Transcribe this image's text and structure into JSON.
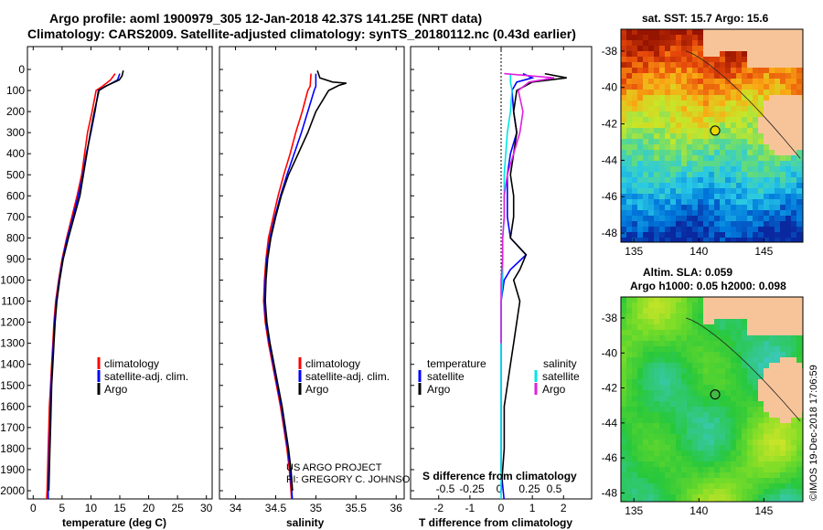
{
  "header": {
    "line1": "Argo profile: aoml 1900979_305 12-Jan-2018 42.37S 141.25E (NRT data)",
    "line2": "Climatology: CARS2009. Satellite-adjusted climatology: synTS_20180112.nc (0.43d earlier)"
  },
  "credit": {
    "line1": "US ARGO PROJECT",
    "line2": "PI: GREGORY C. JOHNSON"
  },
  "stamp": "©IMOS 19-Dec-2018 17:06:59",
  "colors": {
    "climatology": "#ff0000",
    "satellite": "#0000ff",
    "argo": "#000000",
    "sat_salinity": "#00e5e5",
    "argo_salinity": "#e020e0",
    "coast": "#222222",
    "land": "#f7c49a"
  },
  "chart_data": [
    {
      "type": "line",
      "title": "",
      "xlabel": "temperature (deg C)",
      "ylabel": "",
      "xlim": [
        -1,
        31
      ],
      "ylim": [
        2070,
        0
      ],
      "xticks": [
        "0",
        "5",
        "10",
        "15",
        "20",
        "25",
        "30"
      ],
      "yticks": [
        "0",
        "100",
        "200",
        "300",
        "400",
        "500",
        "600",
        "700",
        "800",
        "900",
        "1000",
        "1100",
        "1200",
        "1300",
        "1400",
        "1500",
        "1600",
        "1700",
        "1800",
        "1900",
        "2000"
      ],
      "legend": {
        "placement": "lower-middle",
        "entries": [
          "climatology",
          "satellite-adj. clim.",
          "Argo"
        ]
      },
      "series": [
        {
          "name": "climatology",
          "color": "#ff0000",
          "points": [
            [
              14.2,
              20
            ],
            [
              13.4,
              50
            ],
            [
              12.0,
              80
            ],
            [
              10.9,
              100
            ],
            [
              10.2,
              200
            ],
            [
              9.4,
              300
            ],
            [
              8.9,
              400
            ],
            [
              8.4,
              500
            ],
            [
              7.6,
              600
            ],
            [
              6.7,
              700
            ],
            [
              5.8,
              800
            ],
            [
              5.0,
              900
            ],
            [
              4.4,
              1000
            ],
            [
              3.9,
              1100
            ],
            [
              3.6,
              1200
            ],
            [
              3.4,
              1300
            ],
            [
              3.2,
              1400
            ],
            [
              3.0,
              1500
            ],
            [
              2.8,
              1600
            ],
            [
              2.7,
              1700
            ],
            [
              2.6,
              1800
            ],
            [
              2.5,
              1900
            ],
            [
              2.4,
              2000
            ],
            [
              2.3,
              2050
            ]
          ]
        },
        {
          "name": "satellite-adj. clim.",
          "color": "#0000ff",
          "points": [
            [
              15.0,
              20
            ],
            [
              14.6,
              50
            ],
            [
              12.6,
              80
            ],
            [
              11.3,
              100
            ],
            [
              10.7,
              200
            ],
            [
              10.0,
              300
            ],
            [
              9.2,
              400
            ],
            [
              8.6,
              500
            ],
            [
              7.8,
              600
            ],
            [
              6.9,
              700
            ],
            [
              5.9,
              800
            ],
            [
              5.1,
              900
            ],
            [
              4.5,
              1000
            ],
            [
              4.0,
              1100
            ],
            [
              3.7,
              1200
            ],
            [
              3.5,
              1300
            ],
            [
              3.3,
              1400
            ],
            [
              3.1,
              1500
            ],
            [
              3.0,
              1600
            ],
            [
              2.9,
              1700
            ],
            [
              2.8,
              1800
            ],
            [
              2.7,
              1900
            ],
            [
              2.6,
              2000
            ],
            [
              2.6,
              2050
            ]
          ]
        },
        {
          "name": "Argo",
          "color": "#000000",
          "points": [
            [
              15.6,
              5
            ],
            [
              15.4,
              30
            ],
            [
              14.9,
              50
            ],
            [
              12.5,
              80
            ],
            [
              11.4,
              100
            ],
            [
              10.6,
              200
            ],
            [
              9.9,
              300
            ],
            [
              9.3,
              400
            ],
            [
              8.7,
              500
            ],
            [
              8.1,
              600
            ],
            [
              7.1,
              700
            ],
            [
              6.1,
              800
            ],
            [
              5.2,
              900
            ],
            [
              4.6,
              1000
            ],
            [
              4.1,
              1100
            ],
            [
              3.8,
              1200
            ],
            [
              3.6,
              1300
            ],
            [
              3.4,
              1400
            ],
            [
              3.2,
              1500
            ],
            [
              3.1,
              1600
            ],
            [
              3.0,
              1700
            ],
            [
              2.9,
              1800
            ],
            [
              2.8,
              1900
            ],
            [
              2.7,
              2000
            ]
          ]
        }
      ]
    },
    {
      "type": "line",
      "title": "",
      "xlabel": "salinity",
      "ylabel": "",
      "xlim": [
        33.8,
        36.1
      ],
      "ylim": [
        2070,
        0
      ],
      "xticks": [
        "34",
        "34.5",
        "35",
        "35.5",
        "36"
      ],
      "legend": {
        "placement": "lower-middle",
        "entries": [
          "climatology",
          "satellite-adj. clim.",
          "Argo"
        ]
      },
      "series": [
        {
          "name": "climatology",
          "color": "#ff0000",
          "points": [
            [
              34.94,
              20
            ],
            [
              34.93,
              80
            ],
            [
              34.9,
              100
            ],
            [
              34.83,
              200
            ],
            [
              34.75,
              300
            ],
            [
              34.68,
              400
            ],
            [
              34.6,
              500
            ],
            [
              34.53,
              600
            ],
            [
              34.47,
              700
            ],
            [
              34.41,
              800
            ],
            [
              34.38,
              900
            ],
            [
              34.36,
              1000
            ],
            [
              34.35,
              1100
            ],
            [
              34.37,
              1200
            ],
            [
              34.41,
              1300
            ],
            [
              34.46,
              1400
            ],
            [
              34.51,
              1500
            ],
            [
              34.56,
              1600
            ],
            [
              34.6,
              1700
            ],
            [
              34.64,
              1800
            ],
            [
              34.67,
              1900
            ],
            [
              34.69,
              2000
            ],
            [
              34.7,
              2050
            ]
          ]
        },
        {
          "name": "satellite-adj. clim.",
          "color": "#0000ff",
          "points": [
            [
              35.0,
              20
            ],
            [
              35.0,
              80
            ],
            [
              34.98,
              100
            ],
            [
              34.9,
              200
            ],
            [
              34.82,
              300
            ],
            [
              34.73,
              400
            ],
            [
              34.64,
              500
            ],
            [
              34.56,
              600
            ],
            [
              34.49,
              700
            ],
            [
              34.43,
              800
            ],
            [
              34.39,
              900
            ],
            [
              34.37,
              1000
            ],
            [
              34.36,
              1100
            ],
            [
              34.38,
              1200
            ],
            [
              34.42,
              1300
            ],
            [
              34.47,
              1400
            ],
            [
              34.52,
              1500
            ],
            [
              34.57,
              1600
            ],
            [
              34.61,
              1700
            ],
            [
              34.65,
              1800
            ],
            [
              34.68,
              1900
            ],
            [
              34.7,
              2000
            ],
            [
              34.71,
              2050
            ]
          ]
        },
        {
          "name": "Argo",
          "color": "#000000",
          "points": [
            [
              35.02,
              5
            ],
            [
              35.05,
              40
            ],
            [
              35.21,
              60
            ],
            [
              35.38,
              65
            ],
            [
              35.29,
              75
            ],
            [
              35.16,
              100
            ],
            [
              35.0,
              200
            ],
            [
              34.9,
              300
            ],
            [
              34.78,
              400
            ],
            [
              34.66,
              500
            ],
            [
              34.57,
              600
            ],
            [
              34.5,
              700
            ],
            [
              34.44,
              800
            ],
            [
              34.4,
              900
            ],
            [
              34.38,
              1000
            ],
            [
              34.37,
              1100
            ],
            [
              34.39,
              1200
            ],
            [
              34.43,
              1300
            ],
            [
              34.48,
              1400
            ],
            [
              34.53,
              1500
            ],
            [
              34.58,
              1600
            ],
            [
              34.62,
              1700
            ],
            [
              34.66,
              1800
            ],
            [
              34.69,
              1900
            ],
            [
              34.71,
              2000
            ]
          ]
        }
      ]
    },
    {
      "type": "line",
      "title": "",
      "xlabel": "T difference from climatology",
      "secondary_xlabel": "S difference from climatology",
      "ylabel": "",
      "xlim": [
        -2.9,
        2.9
      ],
      "ylim": [
        2070,
        0
      ],
      "xticks": [
        "-2",
        "-1",
        "0",
        "1",
        "2"
      ],
      "secondary_xticks": [
        "-0.5",
        "-0.25",
        "0",
        "0.25",
        "0.5"
      ],
      "legend": {
        "placement": "lower-left and lower-right",
        "entries": [
          "temperature",
          "satellite",
          "Argo",
          "salinity",
          "satellite",
          "Argo"
        ]
      },
      "series": [
        {
          "name": "satellite",
          "group": "temperature",
          "color": "#0000ff",
          "points": [
            [
              0.7,
              20
            ],
            [
              1.0,
              40
            ],
            [
              0.5,
              60
            ],
            [
              0.35,
              100
            ],
            [
              0.4,
              200
            ],
            [
              0.5,
              300
            ],
            [
              0.3,
              400
            ],
            [
              0.2,
              500
            ],
            [
              0.2,
              600
            ],
            [
              0.2,
              700
            ],
            [
              0.3,
              800
            ],
            [
              0.8,
              880
            ],
            [
              0.3,
              950
            ],
            [
              0.1,
              1000
            ],
            [
              0.0,
              1100
            ],
            [
              0.0,
              1300
            ],
            [
              0.0,
              1500
            ],
            [
              0.0,
              1700
            ],
            [
              0.0,
              1900
            ],
            [
              0.1,
              2050
            ]
          ]
        },
        {
          "name": "Argo",
          "group": "temperature",
          "color": "#000000",
          "points": [
            [
              1.4,
              20
            ],
            [
              2.1,
              40
            ],
            [
              1.0,
              60
            ],
            [
              0.5,
              100
            ],
            [
              0.4,
              200
            ],
            [
              0.5,
              300
            ],
            [
              0.4,
              400
            ],
            [
              0.3,
              500
            ],
            [
              0.4,
              600
            ],
            [
              0.4,
              700
            ],
            [
              0.3,
              800
            ],
            [
              0.8,
              880
            ],
            [
              0.6,
              950
            ],
            [
              0.4,
              1000
            ],
            [
              0.6,
              1100
            ],
            [
              0.5,
              1200
            ],
            [
              0.4,
              1300
            ],
            [
              0.3,
              1400
            ],
            [
              0.2,
              1500
            ],
            [
              0.1,
              1600
            ],
            [
              0.1,
              1800
            ],
            [
              0.0,
              2000
            ]
          ]
        },
        {
          "name": "satellite",
          "group": "salinity",
          "color": "#00e5e5",
          "points": [
            [
              0.3,
              20
            ],
            [
              0.3,
              60
            ],
            [
              0.35,
              100
            ],
            [
              0.3,
              200
            ],
            [
              0.2,
              300
            ],
            [
              0.15,
              400
            ],
            [
              0.1,
              500
            ],
            [
              0.1,
              600
            ],
            [
              0.1,
              700
            ],
            [
              0.05,
              800
            ],
            [
              0.05,
              900
            ],
            [
              0.05,
              1000
            ],
            [
              0.0,
              1100
            ],
            [
              0.0,
              1300
            ],
            [
              0.0,
              1500
            ],
            [
              0.0,
              1700
            ],
            [
              0.0,
              1900
            ],
            [
              0.0,
              2050
            ]
          ]
        },
        {
          "name": "Argo",
          "group": "salinity",
          "color": "#e020e0",
          "points": [
            [
              0.1,
              20
            ],
            [
              1.7,
              40
            ],
            [
              0.9,
              60
            ],
            [
              0.55,
              100
            ],
            [
              0.7,
              200
            ],
            [
              0.6,
              300
            ],
            [
              0.4,
              400
            ],
            [
              0.2,
              500
            ],
            [
              0.1,
              600
            ],
            [
              0.1,
              700
            ],
            [
              0.05,
              800
            ],
            [
              0.05,
              900
            ],
            [
              0.0,
              1000
            ],
            [
              0.0,
              1100
            ],
            [
              0.0,
              1300
            ]
          ]
        }
      ]
    },
    {
      "type": "heatmap",
      "title": "sat. SST: 15.7 Argo: 15.6",
      "xticks": [
        "135",
        "140",
        "145"
      ],
      "yticks": [
        "-38",
        "-40",
        "-42",
        "-44",
        "-46",
        "-48"
      ],
      "xlim": [
        134,
        148
      ],
      "ylim": [
        -48.5,
        -36.8
      ],
      "marker": {
        "lon": 141.25,
        "lat": -42.37
      }
    },
    {
      "type": "heatmap",
      "title": "Altim. SLA: 0.059",
      "subtitle": "Argo h1000: 0.05 h2000: 0.098",
      "xticks": [
        "135",
        "140",
        "145"
      ],
      "yticks": [
        "-38",
        "-40",
        "-42",
        "-44",
        "-46",
        "-48"
      ],
      "xlim": [
        134,
        148
      ],
      "ylim": [
        -48.5,
        -36.8
      ],
      "marker": {
        "lon": 141.25,
        "lat": -42.37
      }
    }
  ]
}
